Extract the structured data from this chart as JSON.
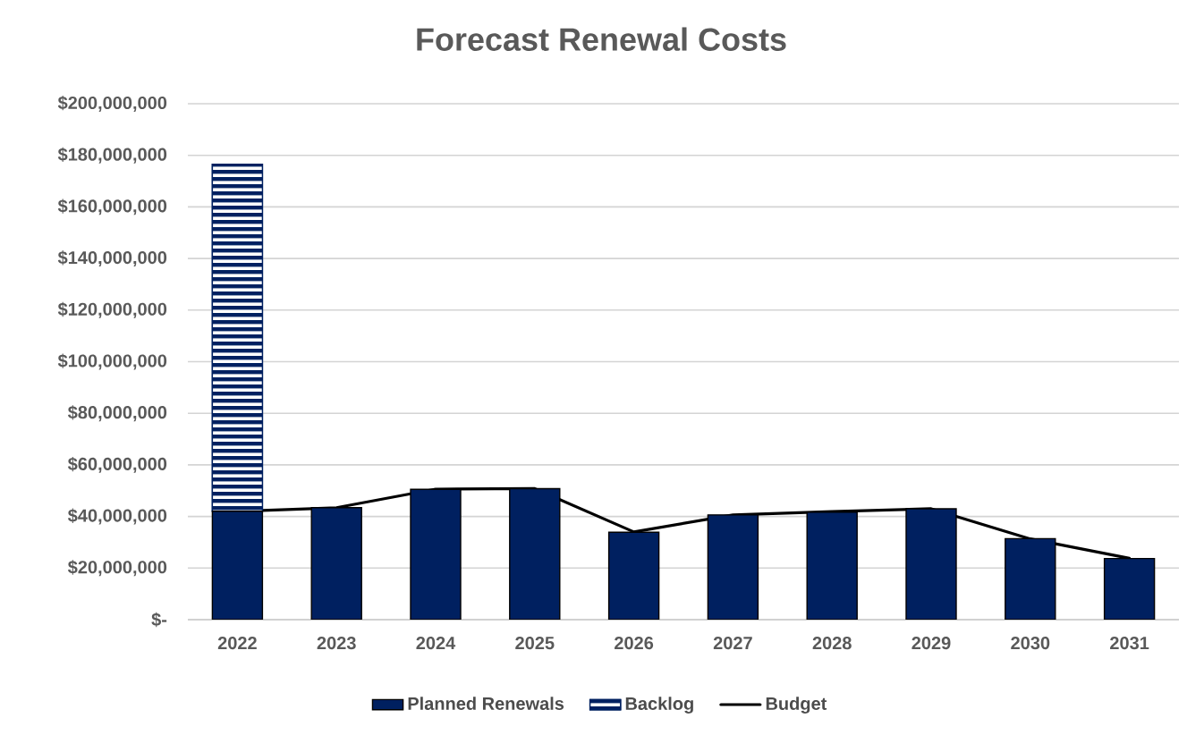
{
  "chart_data": {
    "type": "bar",
    "title": "Forecast Renewal Costs",
    "categories": [
      "2022",
      "2023",
      "2024",
      "2025",
      "2026",
      "2027",
      "2028",
      "2029",
      "2030",
      "2031"
    ],
    "stacked": true,
    "series": [
      {
        "name": "Planned Renewals",
        "color": "#002060",
        "values": [
          42000000,
          43400000,
          50500000,
          50800000,
          33900000,
          40600000,
          41700000,
          43000000,
          31400000,
          23700000
        ]
      },
      {
        "name": "Backlog",
        "color": "#002060",
        "values": [
          134500000,
          null,
          null,
          null,
          null,
          null,
          null,
          null,
          null,
          null
        ]
      },
      {
        "name": "Budget",
        "type": "line",
        "color": "#000000",
        "values": [
          42000000,
          43400000,
          50600000,
          50800000,
          34000000,
          40600000,
          41900000,
          43000000,
          31300000,
          23800000
        ]
      }
    ],
    "ylim": [
      0,
      200000000
    ],
    "yticks": [
      {
        "value": 0,
        "label": "$-"
      },
      {
        "value": 20000000,
        "label": "$20,000,000"
      },
      {
        "value": 40000000,
        "label": "$40,000,000"
      },
      {
        "value": 60000000,
        "label": "$60,000,000"
      },
      {
        "value": 80000000,
        "label": "$80,000,000"
      },
      {
        "value": 100000000,
        "label": "$100,000,000"
      },
      {
        "value": 120000000,
        "label": "$120,000,000"
      },
      {
        "value": 140000000,
        "label": "$140,000,000"
      },
      {
        "value": 160000000,
        "label": "$160,000,000"
      },
      {
        "value": 180000000,
        "label": "$180,000,000"
      },
      {
        "value": 200000000,
        "label": "$200,000,000"
      }
    ],
    "grid": "y",
    "legend": "bottom"
  }
}
